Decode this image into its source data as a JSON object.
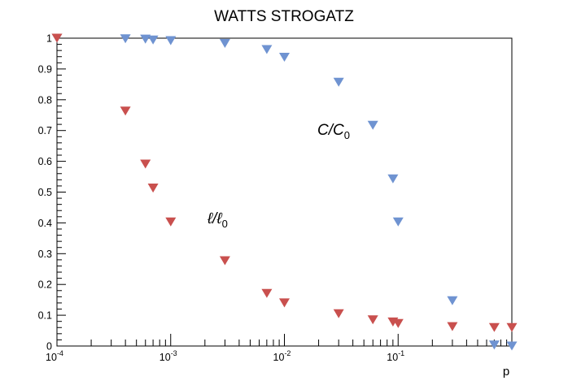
{
  "chart_data": {
    "type": "scatter",
    "title": "WATTS STROGATZ",
    "xlabel": "p",
    "ylabel": "",
    "xscale": "log",
    "xlim": [
      0.0001,
      1
    ],
    "ylim": [
      0,
      1
    ],
    "grid": false,
    "x_tick_labels": [
      {
        "base": "10",
        "exp": "-4"
      },
      {
        "base": "10",
        "exp": "-3"
      },
      {
        "base": "10",
        "exp": "-2"
      },
      {
        "base": "10",
        "exp": "-1"
      }
    ],
    "y_tick_labels": [
      "0",
      "0.1",
      "0.2",
      "0.3",
      "0.4",
      "0.5",
      "0.6",
      "0.7",
      "0.8",
      "0.9",
      "1"
    ],
    "series": [
      {
        "color": "#6f93d1",
        "marker": "down-triangle",
        "x": [
          0.0001,
          0.0004,
          0.0006,
          0.0007,
          0.001,
          0.003,
          0.007,
          0.01,
          0.03,
          0.06,
          0.09,
          0.1,
          0.3,
          0.7,
          1.0
        ],
        "y": [
          1.0,
          0.998,
          0.997,
          0.994,
          0.992,
          0.983,
          0.963,
          0.938,
          0.857,
          0.717,
          0.543,
          0.403,
          0.147,
          0.003,
          0.0
        ]
      },
      {
        "color": "#c9504e",
        "marker": "down-triangle",
        "x": [
          0.0001,
          0.0004,
          0.0006,
          0.0007,
          0.001,
          0.003,
          0.007,
          0.01,
          0.03,
          0.06,
          0.09,
          0.1,
          0.3,
          0.7,
          1.0
        ],
        "y": [
          1.0,
          0.763,
          0.591,
          0.513,
          0.403,
          0.277,
          0.171,
          0.14,
          0.105,
          0.085,
          0.078,
          0.073,
          0.063,
          0.06,
          0.06
        ]
      }
    ],
    "annotations": [
      {
        "base": "C",
        "sep": "/",
        "base2": "C",
        "sub": "0"
      },
      {
        "base": "ℓ",
        "sep": "/",
        "base2": "ℓ",
        "sub": "0"
      }
    ]
  }
}
